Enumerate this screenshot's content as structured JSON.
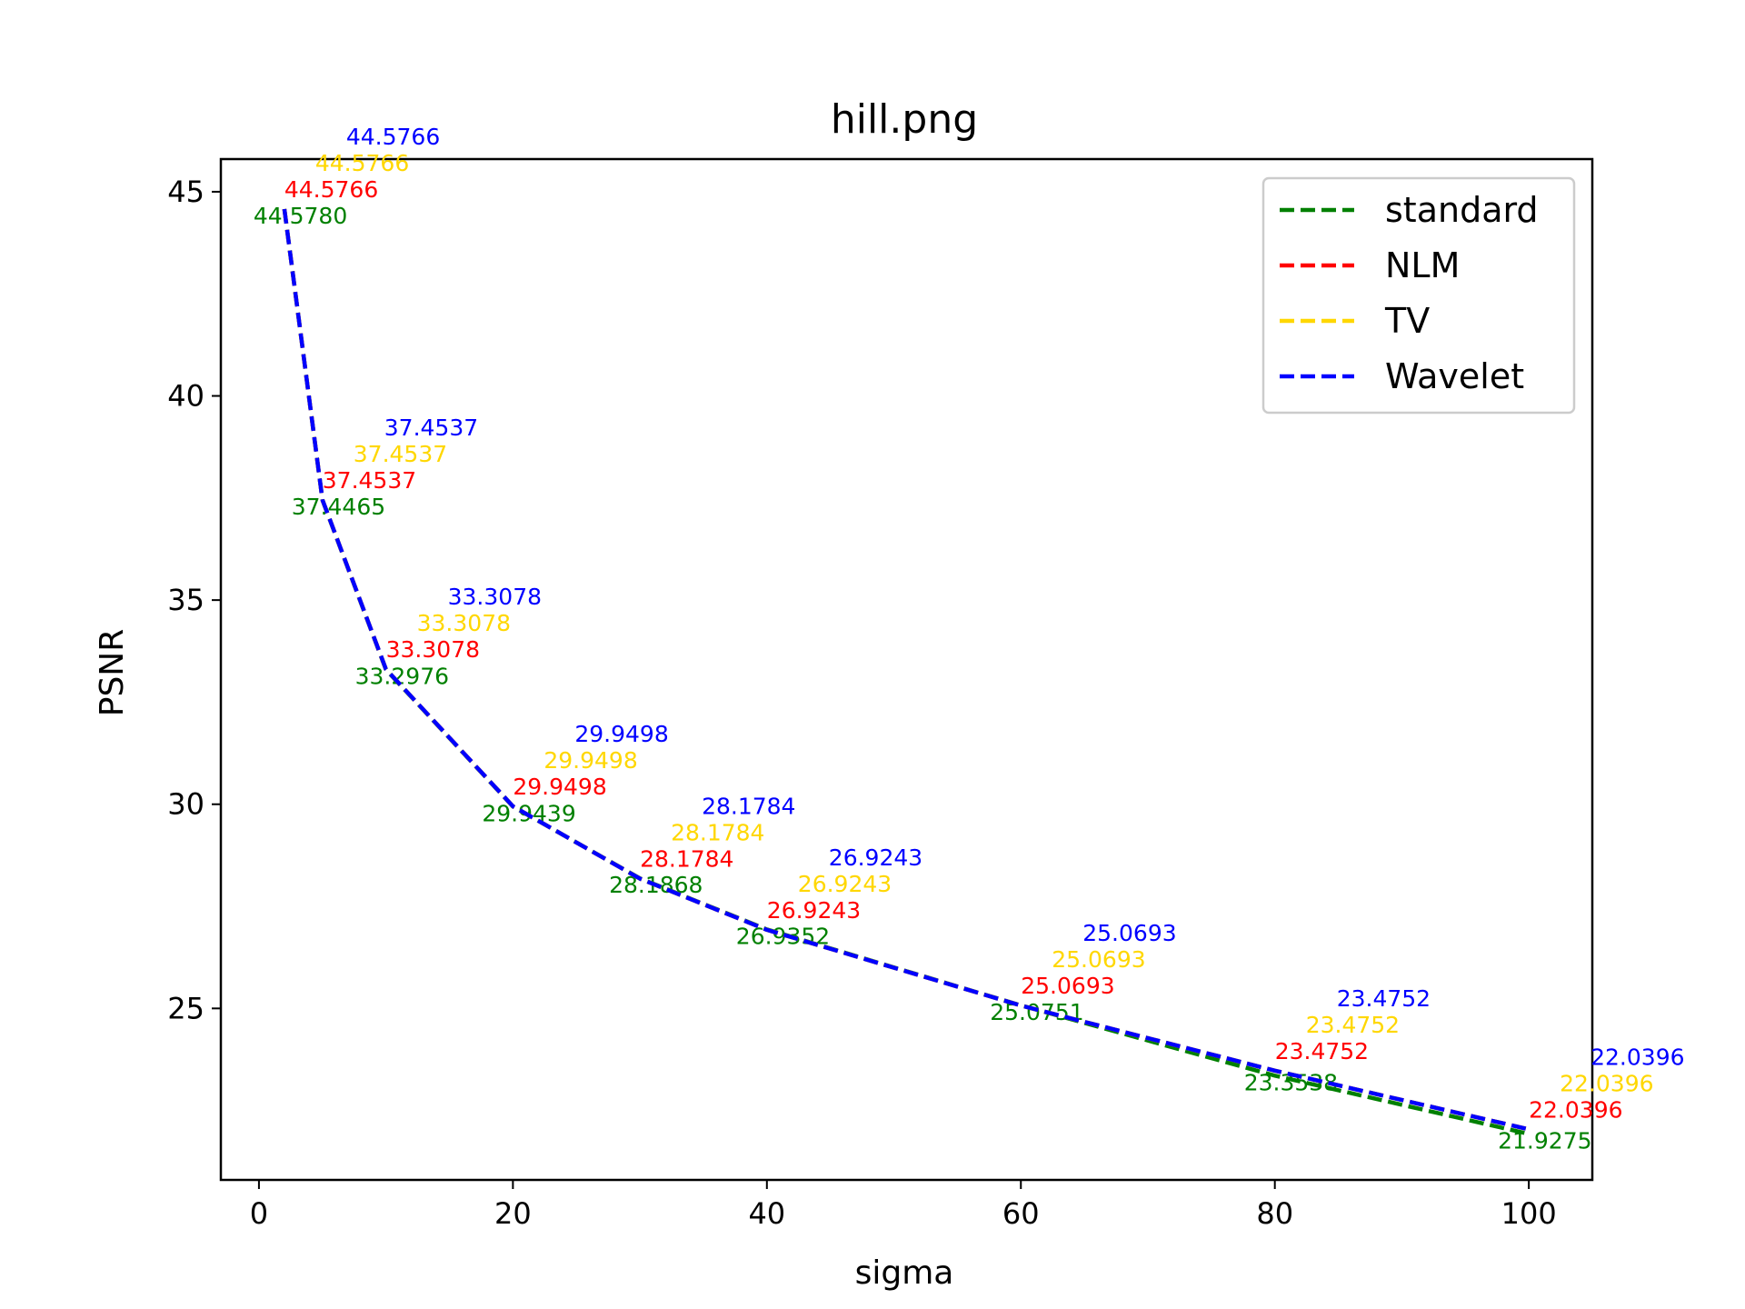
{
  "chart_data": {
    "type": "line",
    "title": "hill.png",
    "xlabel": "sigma",
    "ylabel": "PSNR",
    "xlim": [
      -3,
      105
    ],
    "ylim": [
      20.8,
      45.8
    ],
    "xticks": [
      0,
      20,
      40,
      60,
      80,
      100
    ],
    "yticks": [
      25,
      30,
      35,
      40,
      45
    ],
    "grid": false,
    "legend_position": "top-right",
    "x": [
      2,
      5,
      10,
      20,
      30,
      40,
      60,
      80,
      100
    ],
    "series": [
      {
        "name": "standard",
        "color": "#008000",
        "values": [
          44.578,
          37.4465,
          33.2976,
          29.9439,
          28.1868,
          26.9352,
          25.0751,
          23.3538,
          21.9275
        ],
        "labels": [
          "44.5780",
          "37.4465",
          "33.2976",
          "29.9439",
          "28.1868",
          "26.9352",
          "25.0751",
          "23.3538",
          "21.9275"
        ]
      },
      {
        "name": "NLM",
        "color": "#ff0000",
        "values": [
          44.5766,
          37.4537,
          33.3078,
          29.9498,
          28.1784,
          26.9243,
          25.0693,
          23.4752,
          22.0396
        ],
        "labels": [
          "44.5766",
          "37.4537",
          "33.3078",
          "29.9498",
          "28.1784",
          "26.9243",
          "25.0693",
          "23.4752",
          "22.0396"
        ]
      },
      {
        "name": "TV",
        "color": "#ffd700",
        "values": [
          44.5766,
          37.4537,
          33.3078,
          29.9498,
          28.1784,
          26.9243,
          25.0693,
          23.4752,
          22.0396
        ],
        "labels": [
          "44.5766",
          "37.4537",
          "33.3078",
          "29.9498",
          "28.1784",
          "26.9243",
          "25.0693",
          "23.4752",
          "22.0396"
        ]
      },
      {
        "name": "Wavelet",
        "color": "#0000ff",
        "values": [
          44.5766,
          37.4537,
          33.3078,
          29.9498,
          28.1784,
          26.9243,
          25.0693,
          23.4752,
          22.0396
        ],
        "labels": [
          "44.5766",
          "37.4537",
          "33.3078",
          "29.9498",
          "28.1784",
          "26.9243",
          "25.0693",
          "23.4752",
          "22.0396"
        ]
      }
    ]
  }
}
